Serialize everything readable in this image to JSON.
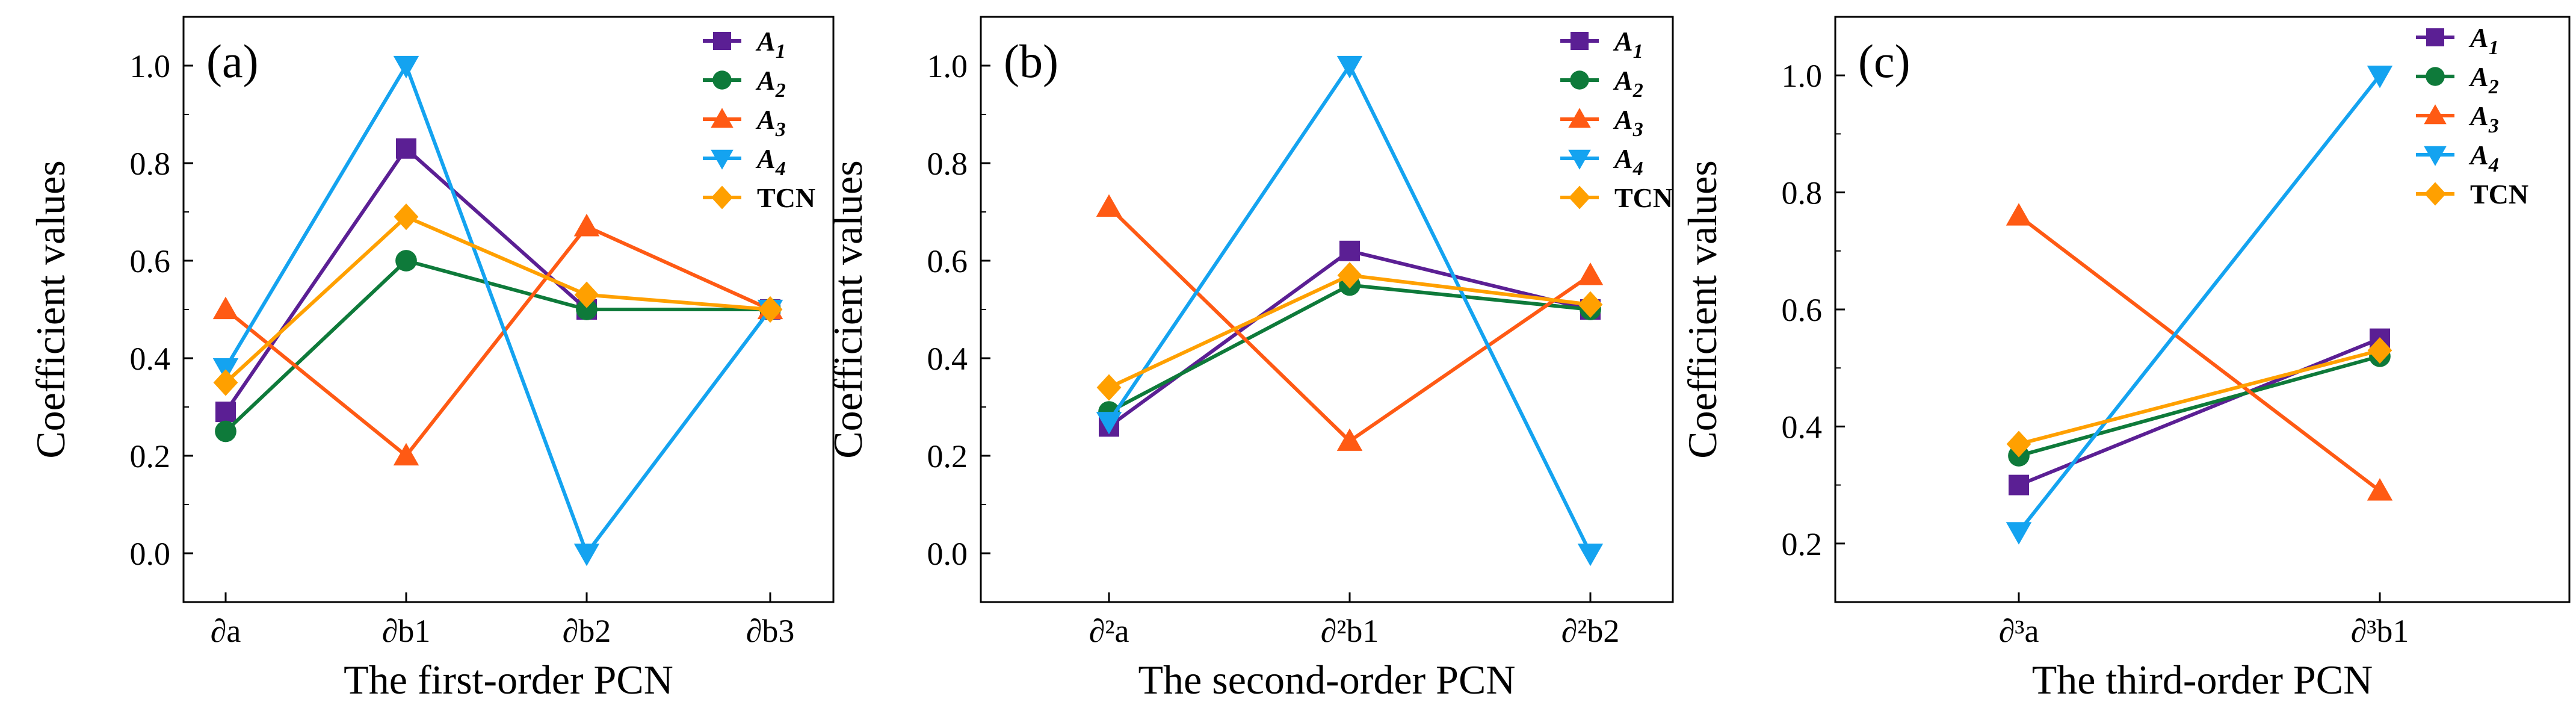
{
  "series_styles": [
    {
      "key": "A1",
      "color": "#5b1f94",
      "marker": "square"
    },
    {
      "key": "A2",
      "color": "#0e7a3a",
      "marker": "circle"
    },
    {
      "key": "A3",
      "color": "#ff5a14",
      "marker": "triangle-up"
    },
    {
      "key": "A4",
      "color": "#14a3f0",
      "marker": "triangle-down"
    },
    {
      "key": "TCN",
      "color": "#ffa000",
      "marker": "diamond"
    }
  ],
  "legend": [
    {
      "base": "A",
      "sub": "1"
    },
    {
      "base": "A",
      "sub": "2"
    },
    {
      "base": "A",
      "sub": "3"
    },
    {
      "base": "A",
      "sub": "4"
    },
    {
      "base": "TCN",
      "sub": ""
    }
  ],
  "chart_data": [
    {
      "type": "line",
      "panel_label": "(a)",
      "xlabel": "The first-order PCN",
      "ylabel": "Coefficient values",
      "categories": [
        "∂a",
        "∂b1",
        "∂b2",
        "∂b3"
      ],
      "ylim": [
        -0.1,
        1.1
      ],
      "yticks": [
        "0.0",
        "0.2",
        "0.4",
        "0.6",
        "0.8",
        "1.0"
      ],
      "legend_position": "top-right",
      "series": [
        {
          "name": "A1",
          "values": [
            0.29,
            0.83,
            0.5,
            0.5
          ]
        },
        {
          "name": "A2",
          "values": [
            0.25,
            0.6,
            0.5,
            0.5
          ]
        },
        {
          "name": "A3",
          "values": [
            0.5,
            0.2,
            0.67,
            0.5
          ]
        },
        {
          "name": "A4",
          "values": [
            0.38,
            1.0,
            0.0,
            0.5
          ]
        },
        {
          "name": "TCN",
          "values": [
            0.35,
            0.69,
            0.53,
            0.5
          ]
        }
      ]
    },
    {
      "type": "line",
      "panel_label": "(b)",
      "xlabel": "The second-order PCN",
      "ylabel": "Coefficient values",
      "categories": [
        "∂²a",
        "∂²b1",
        "∂²b2"
      ],
      "ylim": [
        -0.1,
        1.1
      ],
      "yticks": [
        "0.0",
        "0.2",
        "0.4",
        "0.6",
        "0.8",
        "1.0"
      ],
      "legend_position": "top-right",
      "series": [
        {
          "name": "A1",
          "values": [
            0.26,
            0.62,
            0.5
          ]
        },
        {
          "name": "A2",
          "values": [
            0.29,
            0.55,
            0.5
          ]
        },
        {
          "name": "A3",
          "values": [
            0.71,
            0.23,
            0.57
          ]
        },
        {
          "name": "A4",
          "values": [
            0.27,
            1.0,
            0.0
          ]
        },
        {
          "name": "TCN",
          "values": [
            0.34,
            0.57,
            0.51
          ]
        }
      ]
    },
    {
      "type": "line",
      "panel_label": "(c)",
      "xlabel": "The third-order PCN",
      "ylabel": "Coefficient values",
      "categories": [
        "∂³a",
        "∂³b1"
      ],
      "ylim": [
        0.1,
        1.1
      ],
      "yticks": [
        "0.2",
        "0.4",
        "0.6",
        "0.8",
        "1.0"
      ],
      "legend_position": "top-right",
      "series": [
        {
          "name": "A1",
          "values": [
            0.3,
            0.55
          ]
        },
        {
          "name": "A2",
          "values": [
            0.35,
            0.52
          ]
        },
        {
          "name": "A3",
          "values": [
            0.76,
            0.29
          ]
        },
        {
          "name": "A4",
          "values": [
            0.22,
            1.0
          ]
        },
        {
          "name": "TCN",
          "values": [
            0.37,
            0.53
          ]
        }
      ]
    }
  ]
}
